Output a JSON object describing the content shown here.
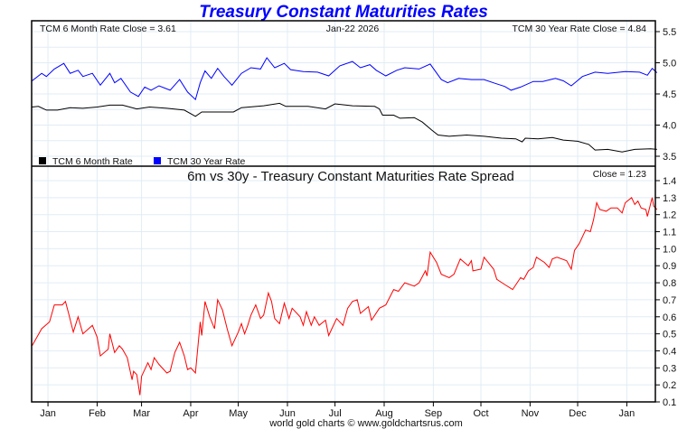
{
  "title": "Treasury Constant Maturities Rates",
  "footer": "world gold charts © www.goldchartsrus.com",
  "colors": {
    "title": "#0000ff",
    "six_month": "#000000",
    "thirty_year": "#0000ff",
    "spread": "#ff0000",
    "grid": "#e2ecf6"
  },
  "chart_data": [
    {
      "type": "line",
      "panel": "top",
      "header_left": "TCM 6 Month Rate Close = 3.61",
      "header_center": "Jan-22  2026",
      "header_right": "TCM 30 Year Rate Close = 4.84",
      "x_unit": "days since 2025-01-01",
      "xlim": [
        -10.3,
        383
      ],
      "ylim": [
        3.5,
        5.5
      ],
      "yticks": [
        "5.5",
        "5.0",
        "4.5",
        "4.0",
        "3.5"
      ],
      "legend": [
        "TCM 6 Month Rate",
        "TCM 30 Year Rate"
      ],
      "legend_placement": "bottom-left",
      "series": [
        {
          "name": "TCM 6 Month Rate",
          "points": [
            [
              -10,
              4.29
            ],
            [
              -6,
              4.3
            ],
            [
              -1,
              4.24
            ],
            [
              6,
              4.24
            ],
            [
              14,
              4.28
            ],
            [
              22,
              4.27
            ],
            [
              31,
              4.29
            ],
            [
              39,
              4.32
            ],
            [
              47,
              4.32
            ],
            [
              56,
              4.26
            ],
            [
              64,
              4.29
            ],
            [
              75,
              4.27
            ],
            [
              86,
              4.24
            ],
            [
              93,
              4.14
            ],
            [
              97,
              4.21
            ],
            [
              106,
              4.21
            ],
            [
              117,
              4.21
            ],
            [
              122,
              4.28
            ],
            [
              136,
              4.31
            ],
            [
              146,
              4.35
            ],
            [
              150,
              4.3
            ],
            [
              164,
              4.3
            ],
            [
              175,
              4.26
            ],
            [
              181,
              4.34
            ],
            [
              192,
              4.31
            ],
            [
              206,
              4.3
            ],
            [
              209,
              4.26
            ],
            [
              211,
              4.16
            ],
            [
              218,
              4.16
            ],
            [
              222,
              4.11
            ],
            [
              231,
              4.12
            ],
            [
              236,
              4.05
            ],
            [
              242,
              3.92
            ],
            [
              246,
              3.84
            ],
            [
              253,
              3.82
            ],
            [
              264,
              3.84
            ],
            [
              275,
              3.82
            ],
            [
              286,
              3.79
            ],
            [
              295,
              3.78
            ],
            [
              299,
              3.73
            ],
            [
              301,
              3.79
            ],
            [
              309,
              3.78
            ],
            [
              318,
              3.8
            ],
            [
              325,
              3.76
            ],
            [
              334,
              3.74
            ],
            [
              341,
              3.69
            ],
            [
              345,
              3.6
            ],
            [
              353,
              3.61
            ],
            [
              362,
              3.57
            ],
            [
              370,
              3.61
            ],
            [
              380,
              3.62
            ],
            [
              384,
              3.61
            ]
          ]
        },
        {
          "name": "TCM 30 Year Rate",
          "points": [
            [
              -10,
              4.71
            ],
            [
              -4,
              4.83
            ],
            [
              -1,
              4.78
            ],
            [
              4,
              4.9
            ],
            [
              10,
              4.99
            ],
            [
              14,
              4.83
            ],
            [
              19,
              4.88
            ],
            [
              22,
              4.78
            ],
            [
              28,
              4.83
            ],
            [
              33,
              4.64
            ],
            [
              39,
              4.83
            ],
            [
              42,
              4.68
            ],
            [
              46,
              4.75
            ],
            [
              52,
              4.53
            ],
            [
              57,
              4.46
            ],
            [
              61,
              4.61
            ],
            [
              65,
              4.56
            ],
            [
              70,
              4.63
            ],
            [
              77,
              4.56
            ],
            [
              83,
              4.73
            ],
            [
              88,
              4.53
            ],
            [
              93,
              4.41
            ],
            [
              96,
              4.68
            ],
            [
              99,
              4.87
            ],
            [
              103,
              4.75
            ],
            [
              107,
              4.91
            ],
            [
              111,
              4.78
            ],
            [
              116,
              4.64
            ],
            [
              122,
              4.83
            ],
            [
              128,
              4.92
            ],
            [
              134,
              4.9
            ],
            [
              138,
              5.08
            ],
            [
              143,
              4.92
            ],
            [
              149,
              4.99
            ],
            [
              153,
              4.89
            ],
            [
              161,
              4.86
            ],
            [
              170,
              4.85
            ],
            [
              177,
              4.79
            ],
            [
              184,
              4.95
            ],
            [
              192,
              5.02
            ],
            [
              197,
              4.92
            ],
            [
              203,
              4.97
            ],
            [
              207,
              4.88
            ],
            [
              213,
              4.79
            ],
            [
              220,
              4.88
            ],
            [
              225,
              4.92
            ],
            [
              234,
              4.9
            ],
            [
              241,
              4.98
            ],
            [
              248,
              4.73
            ],
            [
              252,
              4.68
            ],
            [
              259,
              4.75
            ],
            [
              267,
              4.73
            ],
            [
              275,
              4.73
            ],
            [
              282,
              4.67
            ],
            [
              288,
              4.62
            ],
            [
              292,
              4.56
            ],
            [
              298,
              4.61
            ],
            [
              306,
              4.7
            ],
            [
              312,
              4.7
            ],
            [
              320,
              4.75
            ],
            [
              325,
              4.71
            ],
            [
              330,
              4.63
            ],
            [
              337,
              4.78
            ],
            [
              345,
              4.85
            ],
            [
              353,
              4.83
            ],
            [
              364,
              4.86
            ],
            [
              373,
              4.85
            ],
            [
              378,
              4.8
            ],
            [
              381,
              4.91
            ],
            [
              384,
              4.84
            ]
          ]
        }
      ]
    },
    {
      "type": "line",
      "panel": "bottom",
      "title": "6m vs 30y - Treasury Constant Maturities Rate Spread",
      "header_right": "Close = 1.23",
      "x_unit": "days since 2025-01-01",
      "xlim": [
        -10.3,
        383
      ],
      "ylim": [
        0.1,
        1.4
      ],
      "yticks": [
        "1.4",
        "1.3",
        "1.2",
        "1.1",
        "1.0",
        "0.9",
        "0.8",
        "0.7",
        "0.6",
        "0.5",
        "0.4",
        "0.3",
        "0.2",
        "0.1"
      ],
      "xticks": [
        {
          "label": "Jan",
          "day": 0
        },
        {
          "label": "Feb",
          "day": 31
        },
        {
          "label": "Mar",
          "day": 59
        },
        {
          "label": "Apr",
          "day": 90
        },
        {
          "label": "May",
          "day": 120
        },
        {
          "label": "Jun",
          "day": 151
        },
        {
          "label": "Jul",
          "day": 181
        },
        {
          "label": "Aug",
          "day": 212
        },
        {
          "label": "Sep",
          "day": 243
        },
        {
          "label": "Oct",
          "day": 273
        },
        {
          "label": "Nov",
          "day": 304
        },
        {
          "label": "Dec",
          "day": 334
        },
        {
          "label": "Jan",
          "day": 365
        }
      ],
      "series": [
        {
          "name": "Spread",
          "points": [
            [
              -10,
              0.43
            ],
            [
              -4,
              0.53
            ],
            [
              1,
              0.57
            ],
            [
              4,
              0.67
            ],
            [
              9,
              0.67
            ],
            [
              11,
              0.69
            ],
            [
              13,
              0.62
            ],
            [
              16,
              0.51
            ],
            [
              19,
              0.6
            ],
            [
              22,
              0.5
            ],
            [
              28,
              0.55
            ],
            [
              31,
              0.48
            ],
            [
              33,
              0.37
            ],
            [
              38,
              0.41
            ],
            [
              39,
              0.5
            ],
            [
              42,
              0.39
            ],
            [
              45,
              0.43
            ],
            [
              47,
              0.41
            ],
            [
              50,
              0.36
            ],
            [
              53,
              0.23
            ],
            [
              54,
              0.28
            ],
            [
              56,
              0.26
            ],
            [
              58,
              0.14
            ],
            [
              59,
              0.25
            ],
            [
              63,
              0.33
            ],
            [
              65,
              0.29
            ],
            [
              67,
              0.36
            ],
            [
              70,
              0.32
            ],
            [
              75,
              0.27
            ],
            [
              77,
              0.28
            ],
            [
              80,
              0.39
            ],
            [
              83,
              0.45
            ],
            [
              86,
              0.37
            ],
            [
              88,
              0.29
            ],
            [
              90,
              0.3
            ],
            [
              93,
              0.27
            ],
            [
              96,
              0.57
            ],
            [
              97,
              0.49
            ],
            [
              99,
              0.69
            ],
            [
              102,
              0.6
            ],
            [
              105,
              0.53
            ],
            [
              107,
              0.7
            ],
            [
              110,
              0.64
            ],
            [
              113,
              0.53
            ],
            [
              116,
              0.43
            ],
            [
              120,
              0.51
            ],
            [
              122,
              0.56
            ],
            [
              124,
              0.5
            ],
            [
              126,
              0.55
            ],
            [
              128,
              0.61
            ],
            [
              131,
              0.67
            ],
            [
              134,
              0.59
            ],
            [
              136,
              0.61
            ],
            [
              139,
              0.74
            ],
            [
              141,
              0.69
            ],
            [
              143,
              0.59
            ],
            [
              146,
              0.56
            ],
            [
              149,
              0.68
            ],
            [
              152,
              0.59
            ],
            [
              154,
              0.65
            ],
            [
              159,
              0.6
            ],
            [
              161,
              0.55
            ],
            [
              163,
              0.63
            ],
            [
              166,
              0.55
            ],
            [
              168,
              0.6
            ],
            [
              171,
              0.55
            ],
            [
              175,
              0.58
            ],
            [
              177,
              0.49
            ],
            [
              179,
              0.53
            ],
            [
              182,
              0.59
            ],
            [
              186,
              0.55
            ],
            [
              189,
              0.65
            ],
            [
              192,
              0.69
            ],
            [
              195,
              0.7
            ],
            [
              197,
              0.62
            ],
            [
              202,
              0.66
            ],
            [
              204,
              0.58
            ],
            [
              209,
              0.65
            ],
            [
              213,
              0.67
            ],
            [
              218,
              0.76
            ],
            [
              221,
              0.75
            ],
            [
              225,
              0.8
            ],
            [
              231,
              0.78
            ],
            [
              234,
              0.8
            ],
            [
              238,
              0.87
            ],
            [
              239,
              0.84
            ],
            [
              241,
              0.98
            ],
            [
              245,
              0.92
            ],
            [
              248,
              0.85
            ],
            [
              253,
              0.83
            ],
            [
              256,
              0.85
            ],
            [
              260,
              0.94
            ],
            [
              265,
              0.9
            ],
            [
              267,
              0.93
            ],
            [
              268,
              0.87
            ],
            [
              273,
              0.88
            ],
            [
              275,
              0.95
            ],
            [
              281,
              0.88
            ],
            [
              283,
              0.82
            ],
            [
              288,
              0.79
            ],
            [
              293,
              0.76
            ],
            [
              298,
              0.83
            ],
            [
              300,
              0.82
            ],
            [
              303,
              0.87
            ],
            [
              306,
              0.89
            ],
            [
              308,
              0.95
            ],
            [
              313,
              0.92
            ],
            [
              316,
              0.89
            ],
            [
              318,
              0.94
            ],
            [
              321,
              0.95
            ],
            [
              327,
              0.93
            ],
            [
              330,
              0.88
            ],
            [
              332,
              0.99
            ],
            [
              335,
              1.03
            ],
            [
              339,
              1.11
            ],
            [
              342,
              1.1
            ],
            [
              344,
              1.17
            ],
            [
              346,
              1.27
            ],
            [
              348,
              1.23
            ],
            [
              352,
              1.22
            ],
            [
              355,
              1.24
            ],
            [
              359,
              1.24
            ],
            [
              362,
              1.21
            ],
            [
              364,
              1.27
            ],
            [
              368,
              1.3
            ],
            [
              370,
              1.26
            ],
            [
              372,
              1.28
            ],
            [
              374,
              1.24
            ],
            [
              377,
              1.23
            ],
            [
              378,
              1.19
            ],
            [
              381,
              1.3
            ],
            [
              382,
              1.25
            ],
            [
              384,
              1.23
            ]
          ]
        }
      ]
    }
  ]
}
